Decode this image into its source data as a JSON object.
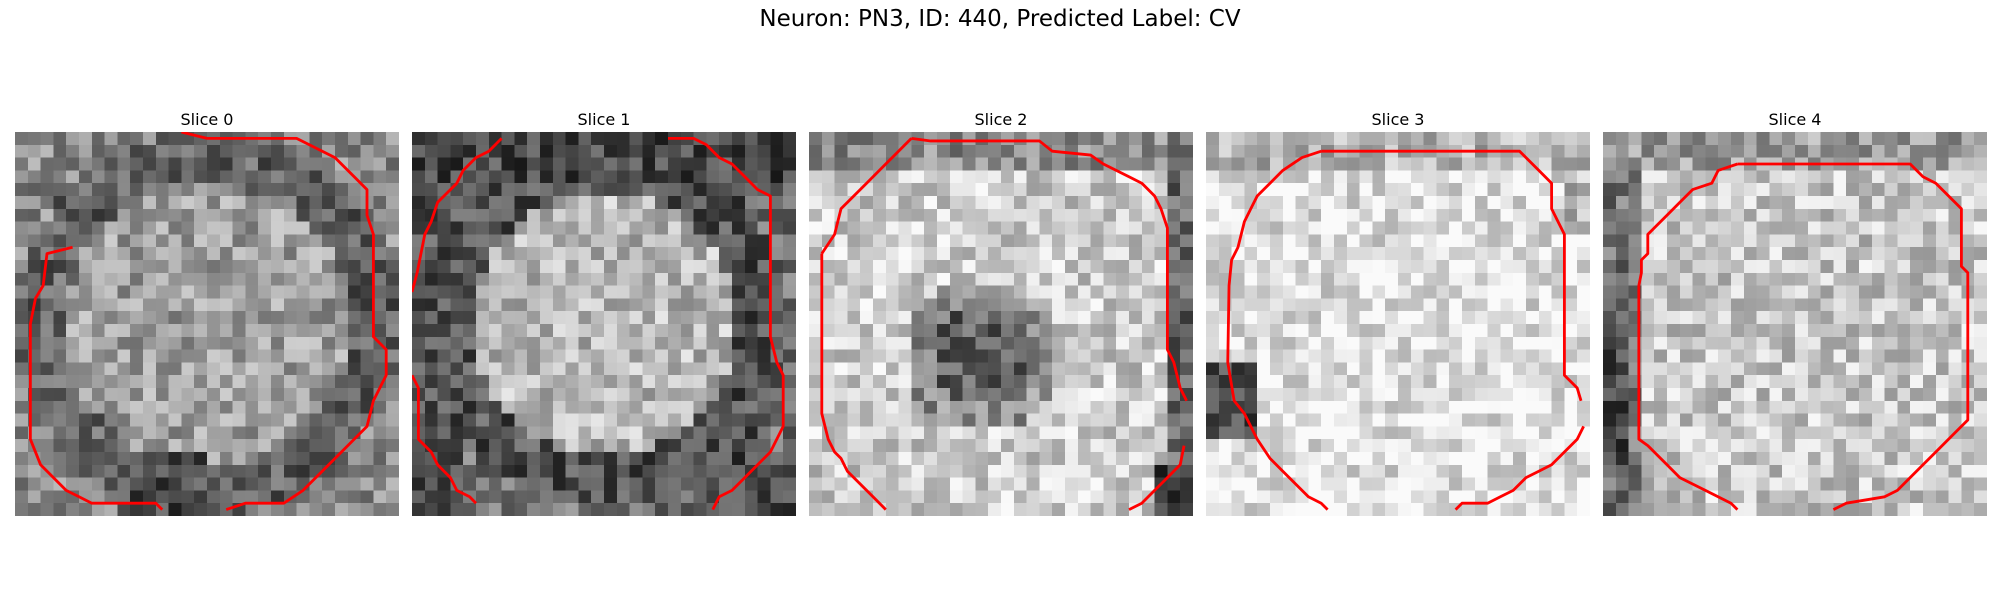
{
  "figure": {
    "title": "Neuron: PN3, ID: 440, Predicted Label: CV"
  },
  "colors": {
    "contour": "#ff0000",
    "background": "#ffffff"
  },
  "slices": [
    {
      "title": "Slice 0",
      "seed": 11,
      "pattern": "dark_ring"
    },
    {
      "title": "Slice 1",
      "seed": 23,
      "pattern": "dark_ring_left"
    },
    {
      "title": "Slice 2",
      "seed": 37,
      "pattern": "light_dark_center"
    },
    {
      "title": "Slice 3",
      "seed": 51,
      "pattern": "light_dark_left"
    },
    {
      "title": "Slice 4",
      "seed": 67,
      "pattern": "light_dark_left_col"
    }
  ]
}
